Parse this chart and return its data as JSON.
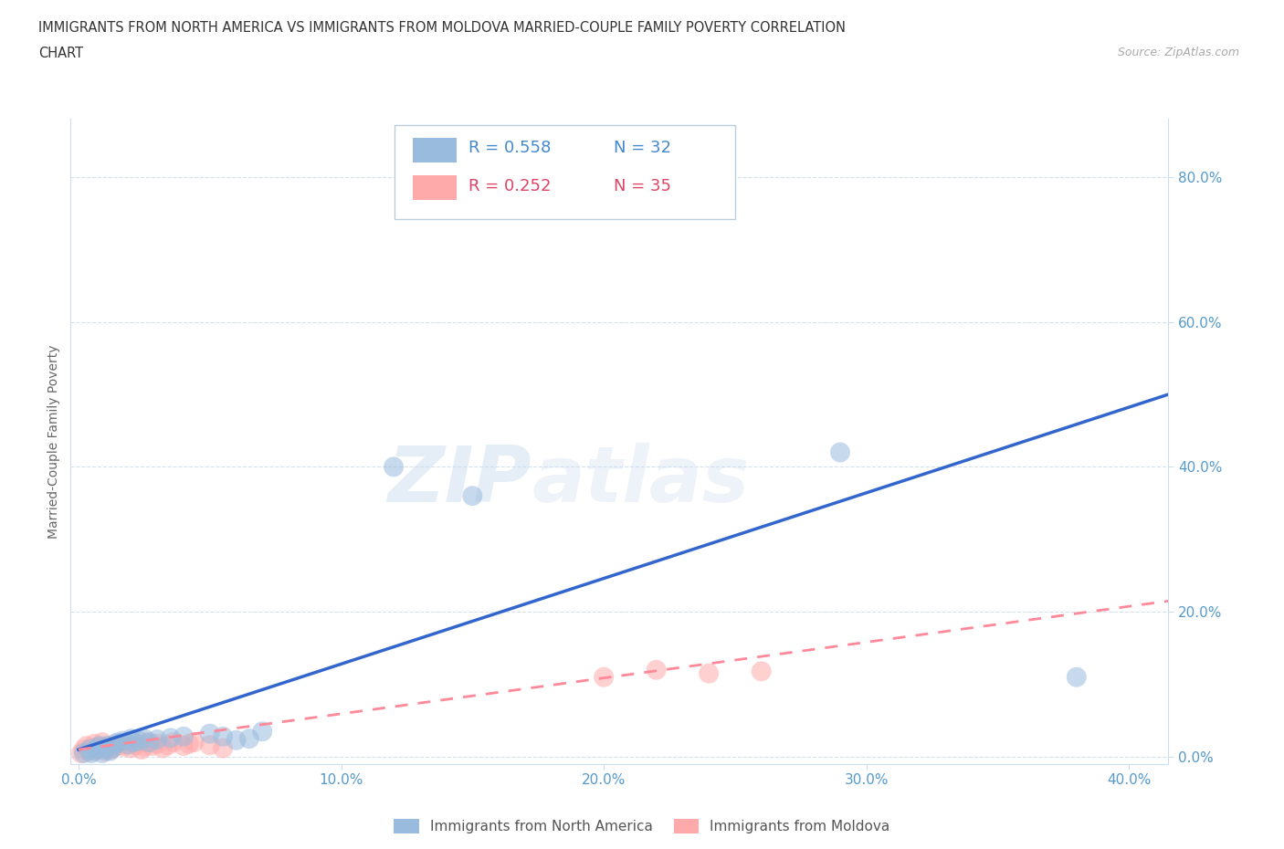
{
  "title_line1": "IMMIGRANTS FROM NORTH AMERICA VS IMMIGRANTS FROM MOLDOVA MARRIED-COUPLE FAMILY POVERTY CORRELATION",
  "title_line2": "CHART",
  "source": "Source: ZipAtlas.com",
  "ylabel": "Married-Couple Family Poverty",
  "xticklabels": [
    "0.0%",
    "10.0%",
    "20.0%",
    "30.0%",
    "40.0%"
  ],
  "xticks": [
    0.0,
    0.1,
    0.2,
    0.3,
    0.4
  ],
  "yticklabels": [
    "0.0%",
    "20.0%",
    "40.0%",
    "60.0%",
    "80.0%"
  ],
  "yticks": [
    0.0,
    0.2,
    0.4,
    0.6,
    0.8
  ],
  "xlim": [
    -0.003,
    0.415
  ],
  "ylim": [
    -0.01,
    0.88
  ],
  "color_blue": "#99BBDD",
  "color_pink": "#FFAAAA",
  "color_blue_line": "#3366CC",
  "color_pink_line": "#FF8899",
  "color_blue_text": "#4488CC",
  "color_pink_text": "#DD4466",
  "watermark_zip": "ZIP",
  "watermark_atlas": "atlas",
  "legend_label1": "Immigrants from North America",
  "legend_label2": "Immigrants from Moldova",
  "na_x": [
    0.002,
    0.004,
    0.005,
    0.006,
    0.007,
    0.008,
    0.009,
    0.01,
    0.011,
    0.012,
    0.013,
    0.014,
    0.015,
    0.017,
    0.019,
    0.02,
    0.021,
    0.023,
    0.025,
    0.027,
    0.03,
    0.035,
    0.04,
    0.05,
    0.055,
    0.06,
    0.065,
    0.07,
    0.12,
    0.15,
    0.29,
    0.38
  ],
  "na_y": [
    0.005,
    0.01,
    0.005,
    0.008,
    0.012,
    0.015,
    0.005,
    0.01,
    0.015,
    0.008,
    0.012,
    0.018,
    0.02,
    0.022,
    0.017,
    0.025,
    0.02,
    0.022,
    0.025,
    0.02,
    0.024,
    0.026,
    0.028,
    0.032,
    0.028,
    0.023,
    0.025,
    0.035,
    0.4,
    0.36,
    0.42,
    0.11
  ],
  "md_x": [
    0.001,
    0.002,
    0.003,
    0.004,
    0.005,
    0.006,
    0.007,
    0.008,
    0.009,
    0.01,
    0.011,
    0.012,
    0.013,
    0.015,
    0.017,
    0.018,
    0.02,
    0.022,
    0.024,
    0.025,
    0.026,
    0.028,
    0.03,
    0.032,
    0.034,
    0.036,
    0.04,
    0.042,
    0.044,
    0.05,
    0.055,
    0.2,
    0.22,
    0.24,
    0.26
  ],
  "md_y": [
    0.005,
    0.01,
    0.015,
    0.008,
    0.012,
    0.018,
    0.01,
    0.014,
    0.02,
    0.008,
    0.015,
    0.01,
    0.012,
    0.016,
    0.014,
    0.018,
    0.012,
    0.016,
    0.01,
    0.014,
    0.02,
    0.015,
    0.018,
    0.012,
    0.016,
    0.02,
    0.015,
    0.018,
    0.02,
    0.016,
    0.012,
    0.11,
    0.12,
    0.115,
    0.118
  ],
  "na_line_x0": 0.0,
  "na_line_x1": 0.415,
  "na_line_y0": 0.01,
  "na_line_y1": 0.5,
  "md_line_x0": 0.0,
  "md_line_x1": 0.415,
  "md_line_y0": 0.01,
  "md_line_y1": 0.215
}
